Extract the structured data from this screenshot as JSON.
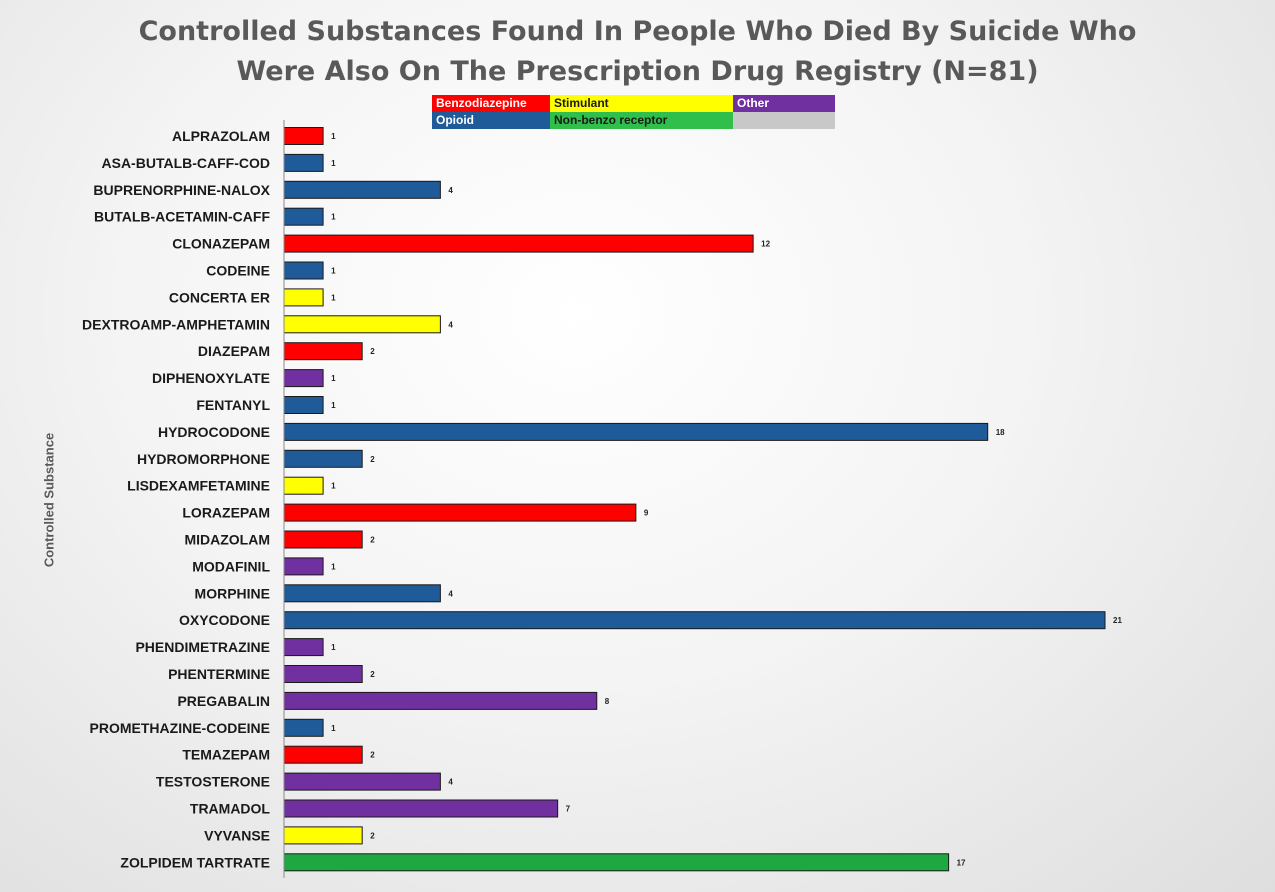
{
  "chart_data": {
    "type": "bar",
    "orientation": "horizontal",
    "title_lines": [
      "Controlled Substances Found In People Who Died By Suicide Who",
      "Were Also On The Prescription Drug Registry (N=81)"
    ],
    "ylabel": "Controlled Substance",
    "xlim": [
      0,
      21
    ],
    "grid": false,
    "legend": {
      "placement": "top-center",
      "entries": [
        {
          "label": "Benzodiazepine",
          "color": "#ff0000",
          "text_color": "#ffffff"
        },
        {
          "label": "Stimulant",
          "color": "#ffff00",
          "text_color": "#1a1a1a"
        },
        {
          "label": "Other",
          "color": "#7030a0",
          "text_color": "#ffffff"
        },
        {
          "label": "Opioid",
          "color": "#1f5b99",
          "text_color": "#ffffff"
        },
        {
          "label": "Non-benzo receptor",
          "color": "#2fbf4a",
          "text_color": "#1a1a1a"
        },
        {
          "label": "",
          "color": "#c8c8c8",
          "text_color": "#1a1a1a"
        }
      ]
    },
    "class_colors": {
      "Benzodiazepine": "#ff0000",
      "Stimulant": "#ffff00",
      "Other": "#7030a0",
      "Opioid": "#1f5b99",
      "Non-benzo receptor": "#1fa840"
    },
    "bars": [
      {
        "category": "ALPRAZOLAM",
        "value": 1,
        "class": "Benzodiazepine"
      },
      {
        "category": "ASA-BUTALB-CAFF-COD",
        "value": 1,
        "class": "Opioid"
      },
      {
        "category": "BUPRENORPHINE-NALOX",
        "value": 4,
        "class": "Opioid"
      },
      {
        "category": "BUTALB-ACETAMIN-CAFF",
        "value": 1,
        "class": "Opioid"
      },
      {
        "category": "CLONAZEPAM",
        "value": 12,
        "class": "Benzodiazepine"
      },
      {
        "category": "CODEINE",
        "value": 1,
        "class": "Opioid"
      },
      {
        "category": "CONCERTA ER",
        "value": 1,
        "class": "Stimulant"
      },
      {
        "category": "DEXTROAMP-AMPHETAMIN",
        "value": 4,
        "class": "Stimulant"
      },
      {
        "category": "DIAZEPAM",
        "value": 2,
        "class": "Benzodiazepine"
      },
      {
        "category": "DIPHENOXYLATE",
        "value": 1,
        "class": "Other"
      },
      {
        "category": "FENTANYL",
        "value": 1,
        "class": "Opioid"
      },
      {
        "category": "HYDROCODONE",
        "value": 18,
        "class": "Opioid"
      },
      {
        "category": "HYDROMORPHONE",
        "value": 2,
        "class": "Opioid"
      },
      {
        "category": "LISDEXAMFETAMINE",
        "value": 1,
        "class": "Stimulant"
      },
      {
        "category": "LORAZEPAM",
        "value": 9,
        "class": "Benzodiazepine"
      },
      {
        "category": "MIDAZOLAM",
        "value": 2,
        "class": "Benzodiazepine"
      },
      {
        "category": "MODAFINIL",
        "value": 1,
        "class": "Other"
      },
      {
        "category": "MORPHINE",
        "value": 4,
        "class": "Opioid"
      },
      {
        "category": "OXYCODONE",
        "value": 21,
        "class": "Opioid"
      },
      {
        "category": "PHENDIMETRAZINE",
        "value": 1,
        "class": "Other"
      },
      {
        "category": "PHENTERMINE",
        "value": 2,
        "class": "Other"
      },
      {
        "category": "PREGABALIN",
        "value": 8,
        "class": "Other"
      },
      {
        "category": "PROMETHAZINE-CODEINE",
        "value": 1,
        "class": "Opioid"
      },
      {
        "category": "TEMAZEPAM",
        "value": 2,
        "class": "Benzodiazepine"
      },
      {
        "category": "TESTOSTERONE",
        "value": 4,
        "class": "Other"
      },
      {
        "category": "TRAMADOL",
        "value": 7,
        "class": "Other"
      },
      {
        "category": "VYVANSE",
        "value": 2,
        "class": "Stimulant"
      },
      {
        "category": "ZOLPIDEM TARTRATE",
        "value": 17,
        "class": "Non-benzo receptor"
      }
    ]
  }
}
